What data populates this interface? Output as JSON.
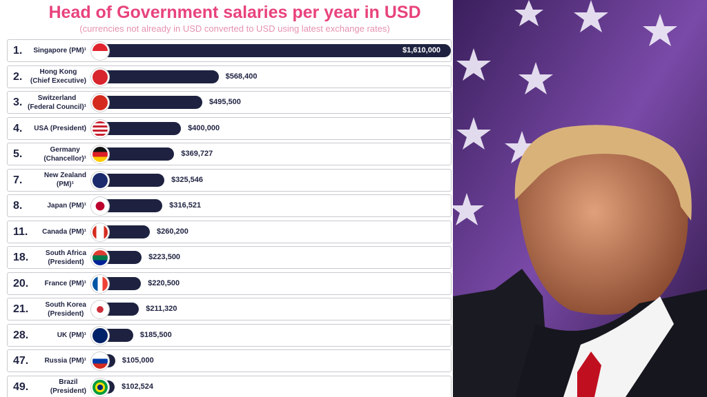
{
  "chart_data": {
    "type": "bar",
    "title": "Head of Government salaries per year in USD",
    "subtitle": "(currencies not already in USD converted to USD using latest exchange rates)",
    "ranks": [
      "1.",
      "2.",
      "3.",
      "4.",
      "5.",
      "7.",
      "8.",
      "11.",
      "18.",
      "20.",
      "21.",
      "28.",
      "47.",
      "49."
    ],
    "categories": [
      "Singapore (PM)¹",
      "Hong Kong\n(Chief Executive)",
      "Switzerland\n(Federal Council)¹",
      "USA (President)",
      "Germany\n(Chancellor)¹",
      "New Zealand\n(PM)¹",
      "Japan (PM)¹",
      "Canada (PM)¹",
      "South Africa\n(President)",
      "France (PM)¹",
      "South Korea\n(President)",
      "UK (PM)¹",
      "Russia (PM)¹",
      "Brazil\n(President)"
    ],
    "values": [
      1610000,
      568400,
      495500,
      400000,
      369727,
      325546,
      316521,
      260200,
      223500,
      220500,
      211320,
      185500,
      105000,
      102524
    ],
    "value_labels": [
      "$1,610,000",
      "$568,400",
      "$495,500",
      "$400,000",
      "$369,727",
      "$325,546",
      "$316,521",
      "$260,200",
      "$223,500",
      "$220,500",
      "$211,320",
      "$185,500",
      "$105,000",
      "$102,524"
    ],
    "color": "#1e2240"
  }
}
